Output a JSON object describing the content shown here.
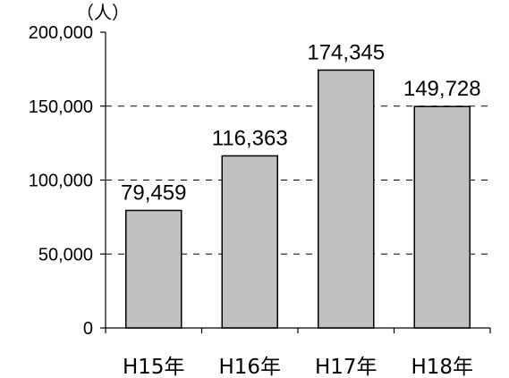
{
  "chart_data": {
    "type": "bar",
    "title": "",
    "xlabel": "",
    "ylabel": "",
    "unit_label": "（人）",
    "categories": [
      "H15年",
      "H16年",
      "H17年",
      "H18年"
    ],
    "values": [
      79459,
      116363,
      174345,
      149728
    ],
    "value_labels": [
      "79,459",
      "116,363",
      "174,345",
      "149,728"
    ],
    "ylim": [
      0,
      200000
    ],
    "yticks": [
      0,
      50000,
      100000,
      150000,
      200000
    ],
    "ytick_labels": [
      "0",
      "50,000",
      "100,000",
      "150,000",
      "200,000"
    ],
    "grid": "dashed horizontal",
    "bar_color": "#c0c0c0",
    "bar_edge_color": "#000000"
  }
}
